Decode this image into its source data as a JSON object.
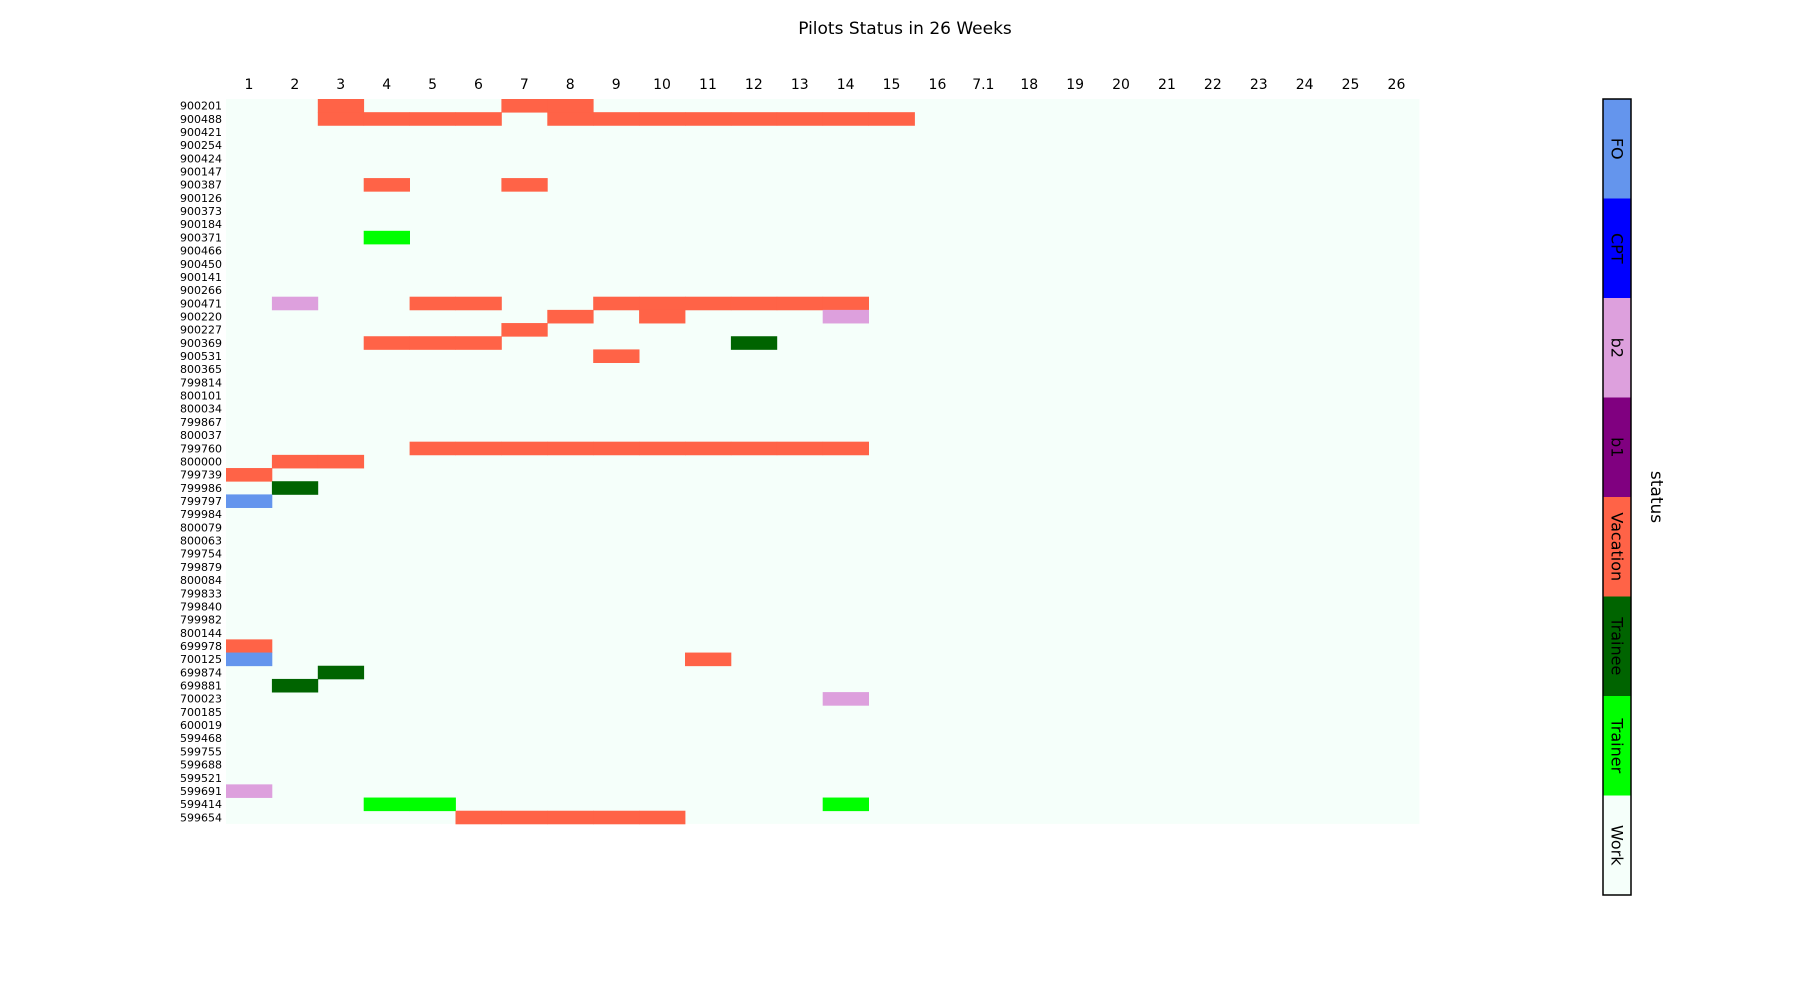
{
  "chart_data": {
    "type": "heatmap",
    "title": "Pilots Status in 26 Weeks",
    "x_labels": [
      "1",
      "2",
      "3",
      "4",
      "5",
      "6",
      "7",
      "8",
      "9",
      "10",
      "11",
      "12",
      "13",
      "14",
      "15",
      "16",
      "7.1",
      "18",
      "19",
      "20",
      "21",
      "22",
      "23",
      "24",
      "25",
      "26"
    ],
    "y_labels": [
      "900201",
      "900488",
      "900421",
      "900254",
      "900424",
      "900147",
      "900387",
      "900126",
      "900373",
      "900184",
      "900371",
      "900466",
      "900450",
      "900141",
      "900266",
      "900471",
      "900220",
      "900227",
      "900369",
      "900531",
      "800365",
      "799814",
      "800101",
      "800034",
      "799867",
      "800037",
      "799760",
      "800000",
      "799739",
      "799986",
      "799797",
      "799984",
      "800079",
      "800063",
      "799754",
      "799879",
      "800084",
      "799833",
      "799840",
      "799982",
      "800144",
      "699978",
      "700125",
      "699874",
      "699881",
      "700023",
      "700185",
      "600019",
      "599468",
      "599755",
      "599688",
      "599521",
      "599691",
      "599414",
      "599654"
    ],
    "default_status": "Work",
    "cells": [
      [
        "900201",
        "3",
        "Vacation"
      ],
      [
        "900201",
        "7",
        "Vacation"
      ],
      [
        "900201",
        "8",
        "Vacation"
      ],
      [
        "900488",
        "3",
        "Vacation"
      ],
      [
        "900488",
        "4",
        "Vacation"
      ],
      [
        "900488",
        "5",
        "Vacation"
      ],
      [
        "900488",
        "6",
        "Vacation"
      ],
      [
        "900488",
        "8",
        "Vacation"
      ],
      [
        "900488",
        "9",
        "Vacation"
      ],
      [
        "900488",
        "10",
        "Vacation"
      ],
      [
        "900488",
        "11",
        "Vacation"
      ],
      [
        "900488",
        "12",
        "Vacation"
      ],
      [
        "900488",
        "13",
        "Vacation"
      ],
      [
        "900488",
        "14",
        "Vacation"
      ],
      [
        "900488",
        "15",
        "Vacation"
      ],
      [
        "900387",
        "4",
        "Vacation"
      ],
      [
        "900387",
        "7",
        "Vacation"
      ],
      [
        "900371",
        "4",
        "Trainer"
      ],
      [
        "900471",
        "2",
        "b2"
      ],
      [
        "900471",
        "5",
        "Vacation"
      ],
      [
        "900471",
        "6",
        "Vacation"
      ],
      [
        "900471",
        "9",
        "Vacation"
      ],
      [
        "900471",
        "10",
        "Vacation"
      ],
      [
        "900471",
        "11",
        "Vacation"
      ],
      [
        "900471",
        "12",
        "Vacation"
      ],
      [
        "900471",
        "13",
        "Vacation"
      ],
      [
        "900471",
        "14",
        "Vacation"
      ],
      [
        "900220",
        "8",
        "Vacation"
      ],
      [
        "900220",
        "10",
        "Vacation"
      ],
      [
        "900220",
        "14",
        "b2"
      ],
      [
        "900227",
        "7",
        "Vacation"
      ],
      [
        "900369",
        "4",
        "Vacation"
      ],
      [
        "900369",
        "5",
        "Vacation"
      ],
      [
        "900369",
        "6",
        "Vacation"
      ],
      [
        "900369",
        "12",
        "Trainee"
      ],
      [
        "900531",
        "9",
        "Vacation"
      ],
      [
        "799760",
        "5",
        "Vacation"
      ],
      [
        "799760",
        "6",
        "Vacation"
      ],
      [
        "799760",
        "7",
        "Vacation"
      ],
      [
        "799760",
        "8",
        "Vacation"
      ],
      [
        "799760",
        "9",
        "Vacation"
      ],
      [
        "799760",
        "10",
        "Vacation"
      ],
      [
        "799760",
        "11",
        "Vacation"
      ],
      [
        "799760",
        "12",
        "Vacation"
      ],
      [
        "799760",
        "13",
        "Vacation"
      ],
      [
        "799760",
        "14",
        "Vacation"
      ],
      [
        "800000",
        "2",
        "Vacation"
      ],
      [
        "800000",
        "3",
        "Vacation"
      ],
      [
        "799739",
        "1",
        "Vacation"
      ],
      [
        "799986",
        "2",
        "Trainee"
      ],
      [
        "799797",
        "1",
        "FO"
      ],
      [
        "699978",
        "1",
        "Vacation"
      ],
      [
        "700125",
        "1",
        "FO"
      ],
      [
        "700125",
        "11",
        "Vacation"
      ],
      [
        "699874",
        "3",
        "Trainee"
      ],
      [
        "699881",
        "2",
        "Trainee"
      ],
      [
        "700023",
        "14",
        "b2"
      ],
      [
        "599691",
        "1",
        "b2"
      ],
      [
        "599414",
        "4",
        "Trainer"
      ],
      [
        "599414",
        "5",
        "Trainer"
      ],
      [
        "599414",
        "14",
        "Trainer"
      ],
      [
        "599654",
        "6",
        "Vacation"
      ],
      [
        "599654",
        "7",
        "Vacation"
      ],
      [
        "599654",
        "8",
        "Vacation"
      ],
      [
        "599654",
        "9",
        "Vacation"
      ],
      [
        "599654",
        "10",
        "Vacation"
      ]
    ],
    "colorbar": {
      "label": "status",
      "categories": [
        {
          "name": "FO",
          "color": "#6495ED"
        },
        {
          "name": "CPT",
          "color": "#0000FF"
        },
        {
          "name": "b2",
          "color": "#DDA0DD"
        },
        {
          "name": "b1",
          "color": "#800080"
        },
        {
          "name": "Vacation",
          "color": "#FF6347"
        },
        {
          "name": "Trainee",
          "color": "#006400"
        },
        {
          "name": "Trainer",
          "color": "#00FF00"
        },
        {
          "name": "Work",
          "color": "#F5FFFA"
        }
      ]
    }
  }
}
